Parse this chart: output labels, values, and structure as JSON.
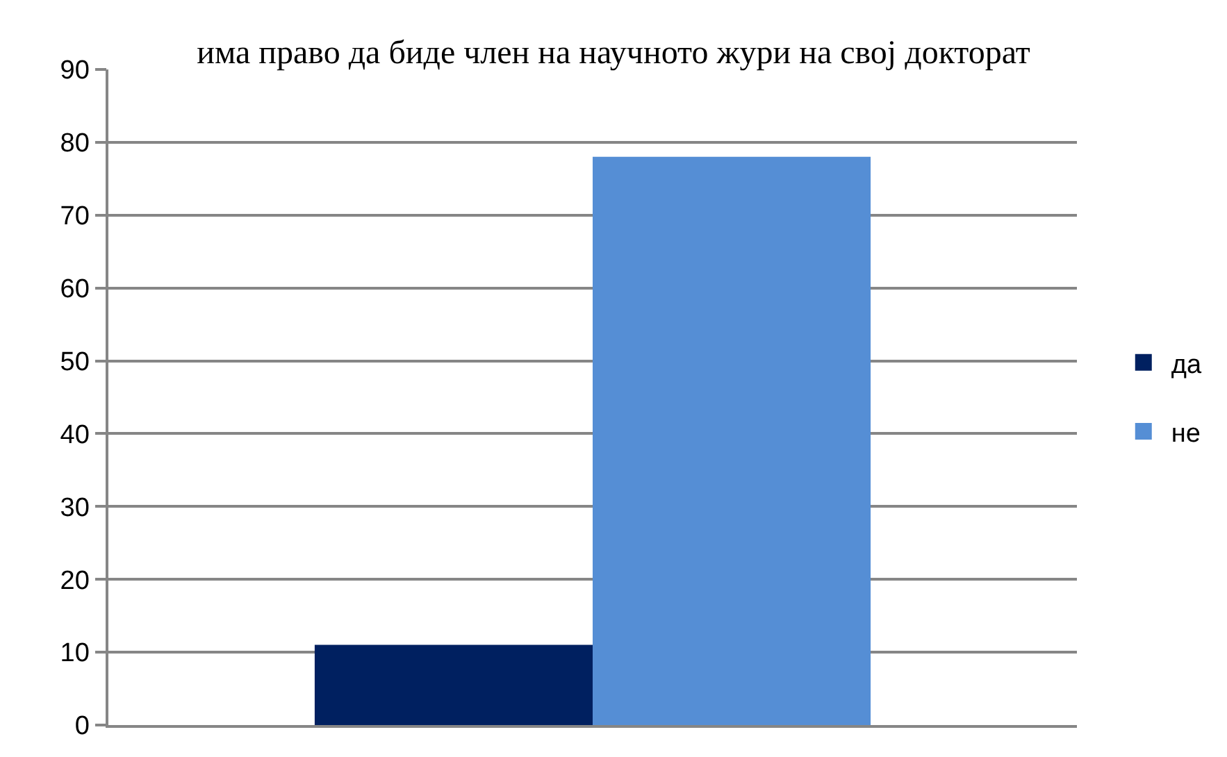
{
  "chart_data": {
    "type": "bar",
    "title": "има право да биде член на научното жури на свој докторат",
    "categories": [
      null
    ],
    "series": [
      {
        "name": "да",
        "color": "#002060",
        "values": [
          11
        ]
      },
      {
        "name": "не",
        "color": "#558ed5",
        "values": [
          78
        ]
      }
    ],
    "ylim": [
      0,
      90
    ],
    "yticks": [
      0,
      10,
      20,
      30,
      40,
      50,
      60,
      70,
      80,
      90
    ],
    "grid": "y",
    "legend": "right"
  }
}
